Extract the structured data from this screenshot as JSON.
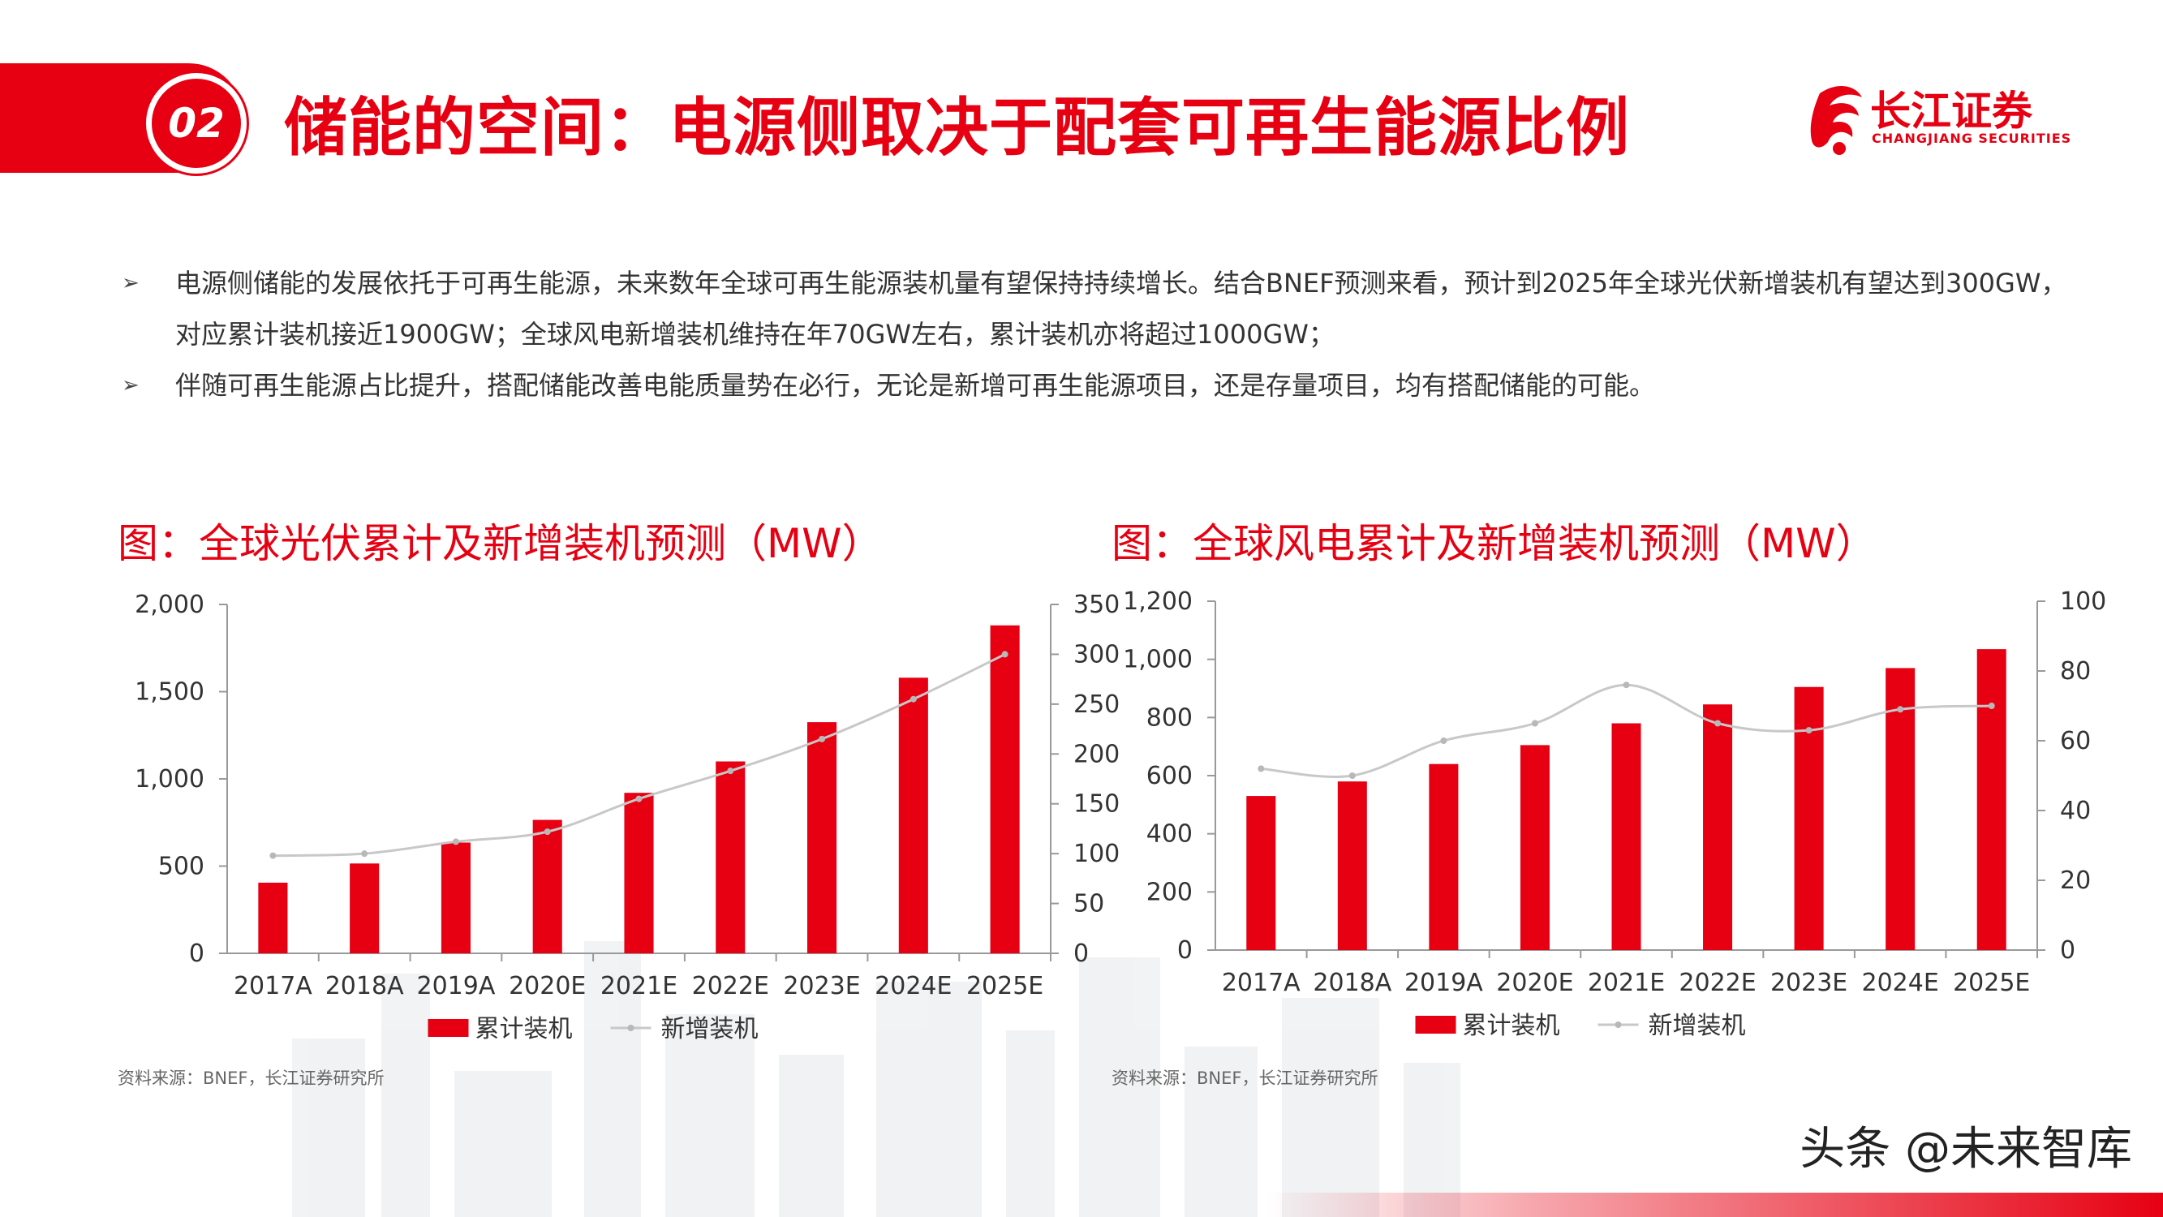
{
  "header": {
    "section_number": "02",
    "title": "储能的空间：电源侧取决于配套可再生能源比例",
    "logo_cn": "长江证券",
    "logo_en": "CHANGJIANG SECURITIES"
  },
  "bullets": [
    "电源侧储能的发展依托于可再生能源，未来数年全球可再生能源装机量有望保持持续增长。结合BNEF预测来看，预计到2025年全球光伏新增装机有望达到300GW，对应累计装机接近1900GW；全球风电新增装机维持在年70GW左右，累计装机亦将超过1000GW；",
    "伴随可再生能源占比提升，搭配储能改善电能质量势在必行，无论是新增可再生能源项目，还是存量项目，均有搭配储能的可能。"
  ],
  "colors": {
    "accent": "#e60012",
    "line": "#c8c8c8"
  },
  "chart_data": [
    {
      "type": "bar",
      "title": "图：全球光伏累计及新增装机预测（MW）",
      "source": "资料来源：BNEF，长江证券研究所",
      "categories": [
        "2017A",
        "2018A",
        "2019A",
        "2020E",
        "2021E",
        "2022E",
        "2023E",
        "2024E",
        "2025E"
      ],
      "series": [
        {
          "name": "累计装机",
          "kind": "bar",
          "axis": "left",
          "values": [
            405,
            515,
            635,
            765,
            920,
            1100,
            1325,
            1580,
            1880
          ]
        },
        {
          "name": "新增装机",
          "kind": "line",
          "axis": "right",
          "values": [
            98,
            100,
            112,
            122,
            155,
            183,
            215,
            255,
            300
          ]
        }
      ],
      "ylim_left": [
        0,
        2000
      ],
      "yticks_left": [
        "0",
        "500",
        "1,000",
        "1,500",
        "2,000"
      ],
      "ylim_right": [
        0,
        350
      ],
      "yticks_right": [
        "0",
        "50",
        "100",
        "150",
        "200",
        "250",
        "300",
        "350"
      ],
      "legend": "bottom",
      "grid": false
    },
    {
      "type": "bar",
      "title": "图：全球风电累计及新增装机预测（MW）",
      "source": "资料来源：BNEF，长江证券研究所",
      "categories": [
        "2017A",
        "2018A",
        "2019A",
        "2020E",
        "2021E",
        "2022E",
        "2023E",
        "2024E",
        "2025E"
      ],
      "series": [
        {
          "name": "累计装机",
          "kind": "bar",
          "axis": "left",
          "values": [
            530,
            580,
            640,
            705,
            780,
            845,
            905,
            970,
            1035
          ]
        },
        {
          "name": "新增装机",
          "kind": "line",
          "axis": "right",
          "values": [
            52,
            50,
            60,
            65,
            76,
            65,
            63,
            69,
            70
          ]
        }
      ],
      "ylim_left": [
        0,
        1200
      ],
      "yticks_left": [
        "0",
        "200",
        "400",
        "600",
        "800",
        "1,000",
        "1,200"
      ],
      "ylim_right": [
        0,
        100
      ],
      "yticks_right": [
        "0",
        "20",
        "40",
        "60",
        "80",
        "100"
      ],
      "legend": "bottom",
      "grid": false
    }
  ],
  "watermark": "头条 @未来智库"
}
